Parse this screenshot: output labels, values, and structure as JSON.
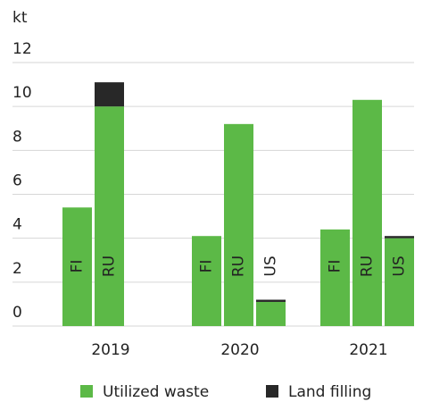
{
  "chart_data": {
    "type": "grouped-stacked-bar",
    "y_label": "kt",
    "ylim": [
      0,
      12
    ],
    "yticks": [
      0,
      2,
      4,
      6,
      8,
      10,
      12
    ],
    "grid": true,
    "categories": [
      "2019",
      "2020",
      "2021"
    ],
    "series": [
      {
        "name": "Utilized waste",
        "color": "#5cb947"
      },
      {
        "name": "Land filling",
        "color": "#282828"
      }
    ],
    "groups": [
      {
        "bars": [
          {
            "label": "FI",
            "values": [
              5.4,
              null
            ]
          },
          {
            "label": "RU",
            "values": [
              10.0,
              1.1
            ]
          }
        ]
      },
      {
        "bars": [
          {
            "label": "FI",
            "values": [
              4.1,
              null
            ]
          },
          {
            "label": "RU",
            "values": [
              9.2,
              null
            ]
          },
          {
            "label": "US",
            "values": [
              1.1,
              0.1
            ]
          }
        ]
      },
      {
        "bars": [
          {
            "label": "FI",
            "values": [
              4.4,
              null
            ]
          },
          {
            "label": "RU",
            "values": [
              10.3,
              null
            ]
          },
          {
            "label": "US",
            "values": [
              4.0,
              0.1
            ]
          }
        ]
      }
    ]
  }
}
